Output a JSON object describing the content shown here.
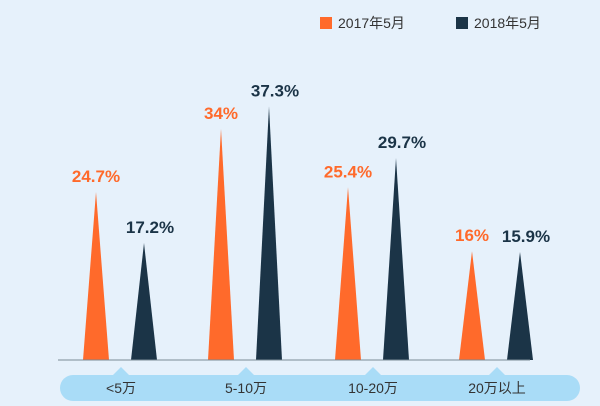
{
  "chart_data": {
    "type": "bar",
    "categories": [
      "<5万",
      "5-10万",
      "10-20万",
      "20万以上"
    ],
    "series": [
      {
        "name": "2017年5月",
        "color": "#ff6a2b",
        "values": [
          24.7,
          34,
          25.4,
          16
        ],
        "labels": [
          "24.7%",
          "34%",
          "25.4%",
          "16%"
        ]
      },
      {
        "name": "2018年5月",
        "color": "#1b3447",
        "values": [
          17.2,
          37.3,
          29.7,
          15.9
        ],
        "labels": [
          "17.2%",
          "37.3%",
          "29.7%",
          "15.9%"
        ]
      }
    ],
    "ylim": [
      0,
      40
    ],
    "legend_position": "top-right",
    "grid": false,
    "category_band_color": "#a9dcf7"
  }
}
